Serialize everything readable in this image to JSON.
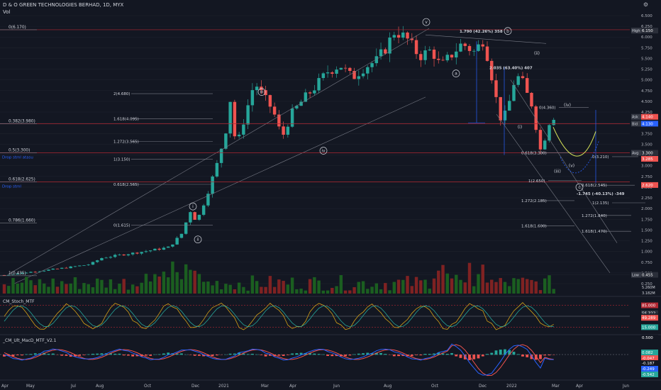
{
  "header": {
    "title": "D & O GREEN TECHNOLOGIES BERHAD, 1D, MYX",
    "sub": "Vol"
  },
  "colors": {
    "bg": "#131722",
    "up": "#26a69a",
    "down": "#ef5350",
    "grid": "#1e222d",
    "text": "#b2b5be",
    "fib": "#787b86",
    "level": "#b22833",
    "proj": "#2962ff",
    "channel": "#787b86",
    "wave": "#d1d4dc",
    "macd_line": "#2962ff",
    "macd_signal": "#ef5350",
    "stoch_k": "#d4a017",
    "stoch_d": "#26a69a"
  },
  "chart_data": {
    "type": "candlestick",
    "symbol": "D & O GREEN TECHNOLOGIES BERHAD",
    "interval": "1D",
    "exchange": "MYX",
    "x_labels": [
      "Apr",
      "May",
      "Jul",
      "Aug",
      "Oct",
      "Dec",
      "2021",
      "Mar",
      "Apr",
      "Jun",
      "Aug",
      "Oct",
      "Dec",
      "2022",
      "Mar",
      "Apr",
      "Jun"
    ],
    "y_ticks": [
      "6.500",
      "6.250",
      "6.000",
      "5.750",
      "5.500",
      "5.250",
      "5.000",
      "4.750",
      "4.500",
      "4.250",
      "4.000",
      "3.750",
      "3.500",
      "3.250",
      "3.000",
      "2.750",
      "2.500",
      "2.250",
      "2.000",
      "1.750",
      "1.500",
      "1.250",
      "1.000",
      "0.750",
      "0.500",
      "0.250"
    ],
    "ylim": [
      0.25,
      6.5
    ],
    "price_path": [
      [
        0,
        0.45
      ],
      [
        6,
        0.55
      ],
      [
        10,
        0.62
      ],
      [
        14,
        0.7
      ],
      [
        16,
        0.85
      ],
      [
        19,
        0.92
      ],
      [
        22,
        0.98
      ],
      [
        25,
        1.05
      ],
      [
        27,
        1.1
      ],
      [
        29,
        1.4
      ],
      [
        30.5,
        1.95
      ],
      [
        31,
        1.75
      ],
      [
        32,
        1.85
      ],
      [
        33.5,
        2.45
      ],
      [
        35,
        3.1
      ],
      [
        36.5,
        3.95
      ],
      [
        37,
        4.55
      ],
      [
        38,
        3.4
      ],
      [
        39.5,
        4.2
      ],
      [
        41,
        4.95
      ],
      [
        42.5,
        4.6
      ],
      [
        44,
        4.3
      ],
      [
        45.5,
        3.65
      ],
      [
        47,
        4.2
      ],
      [
        49,
        4.55
      ],
      [
        51,
        4.85
      ],
      [
        53,
        5.2
      ],
      [
        55,
        5.35
      ],
      [
        57,
        5.05
      ],
      [
        59,
        5.3
      ],
      [
        61,
        5.45
      ],
      [
        62.5,
        5.75
      ],
      [
        64,
        6.15
      ],
      [
        66,
        5.95
      ],
      [
        68,
        5.55
      ],
      [
        70,
        5.7
      ],
      [
        71.5,
        5.3
      ],
      [
        73,
        5.55
      ],
      [
        75,
        5.85
      ],
      [
        77,
        5.65
      ],
      [
        78.5,
        5.95
      ],
      [
        79.5,
        5.35
      ],
      [
        80.5,
        4.6
      ],
      [
        81.5,
        4.0
      ],
      [
        82.5,
        4.35
      ],
      [
        83.5,
        4.95
      ],
      [
        84.5,
        5.1
      ],
      [
        85.5,
        4.7
      ],
      [
        86.5,
        4.4
      ],
      [
        87.5,
        3.6
      ],
      [
        88,
        3.25
      ],
      [
        88.8,
        3.85
      ],
      [
        89.5,
        4.1
      ],
      [
        90,
        4.15
      ]
    ],
    "stats": {
      "high": "6.150",
      "low": "0.455",
      "ask": "4.140",
      "bid": "4.130",
      "avg": "3.300",
      "last": "3.285",
      "level": "2.620"
    },
    "labels": {
      "high_tag": "High",
      "low_tag": "Low",
      "ask_tag": "Ask",
      "bid_tag": "Bid",
      "avg_tag": "Avg"
    },
    "fib_left": [
      {
        "label": "0(6.170)",
        "value": 6.17
      },
      {
        "label": "0.382(3.980)",
        "value": 3.98
      },
      {
        "label": "0.5(3.300)",
        "value": 3.3
      },
      {
        "label": "0.618(2.625)",
        "value": 2.625
      },
      {
        "label": "0.786(1.660)",
        "value": 1.66
      },
      {
        "label": "1(0.435)",
        "value": 0.435
      }
    ],
    "fib_mid": [
      {
        "label": "2(4.680)",
        "value": 4.68
      },
      {
        "label": "1.618(4.095)",
        "value": 4.095
      },
      {
        "label": "1.272(3.565)",
        "value": 3.565
      },
      {
        "label": "1(3.150)",
        "value": 3.15
      },
      {
        "label": "0.618(2.565)",
        "value": 2.565
      },
      {
        "label": "0(1.615)",
        "value": 1.615
      }
    ],
    "fib_right": [
      {
        "label": "0(4.360)",
        "value": 4.36
      },
      {
        "label": "0.618(3.300)",
        "value": 3.3
      },
      {
        "label": "0(3.210)",
        "value": 3.21
      },
      {
        "label": "1(2.650)",
        "value": 2.65
      },
      {
        "label": "0.618(2.545)",
        "value": 2.545
      },
      {
        "label": "1.272(2.185)",
        "value": 2.185
      },
      {
        "label": "1(2.135)",
        "value": 2.135
      },
      {
        "label": "1.272(1.840)",
        "value": 1.84
      },
      {
        "label": "1.618(1.600)",
        "value": 1.6
      },
      {
        "label": "1.618(1.470)",
        "value": 1.47
      }
    ],
    "waves": [
      {
        "t": "i",
        "type": "circle"
      },
      {
        "t": "ii",
        "type": "circle"
      },
      {
        "t": "iii",
        "type": "circle"
      },
      {
        "t": "iv",
        "type": "circle"
      },
      {
        "t": "v",
        "type": "circle"
      },
      {
        "t": "a",
        "type": "circle"
      },
      {
        "t": "b",
        "type": "circle"
      },
      {
        "t": "c",
        "type": "circle"
      },
      {
        "t": "(i)",
        "type": "paren"
      },
      {
        "t": "(ii)",
        "type": "paren"
      },
      {
        "t": "(iii)",
        "type": "paren"
      },
      {
        "t": "(iv)",
        "type": "paren"
      },
      {
        "t": "(v)",
        "type": "paren"
      }
    ],
    "measures": [
      "1.790 (42.26%) 358",
      "2.035 (63.40%) 407",
      "-1.745 (-40.13%) -349"
    ],
    "alerts": [
      "Drop stml atasu",
      "Drop stml"
    ],
    "volume_values": [
      "5.260M",
      "3.182M"
    ],
    "stoch": {
      "name": "CM_Stoch_MTF",
      "levels": [
        "85.000",
        "56.322",
        "50.000",
        "49.289",
        "15.000"
      ]
    },
    "macd": {
      "name": "_CM_Ult_MacD_MTF_V2.1",
      "values": [
        "0.500",
        "0.082",
        "-0.047",
        "-0.187",
        "-0.249",
        "-0.542"
      ]
    }
  }
}
